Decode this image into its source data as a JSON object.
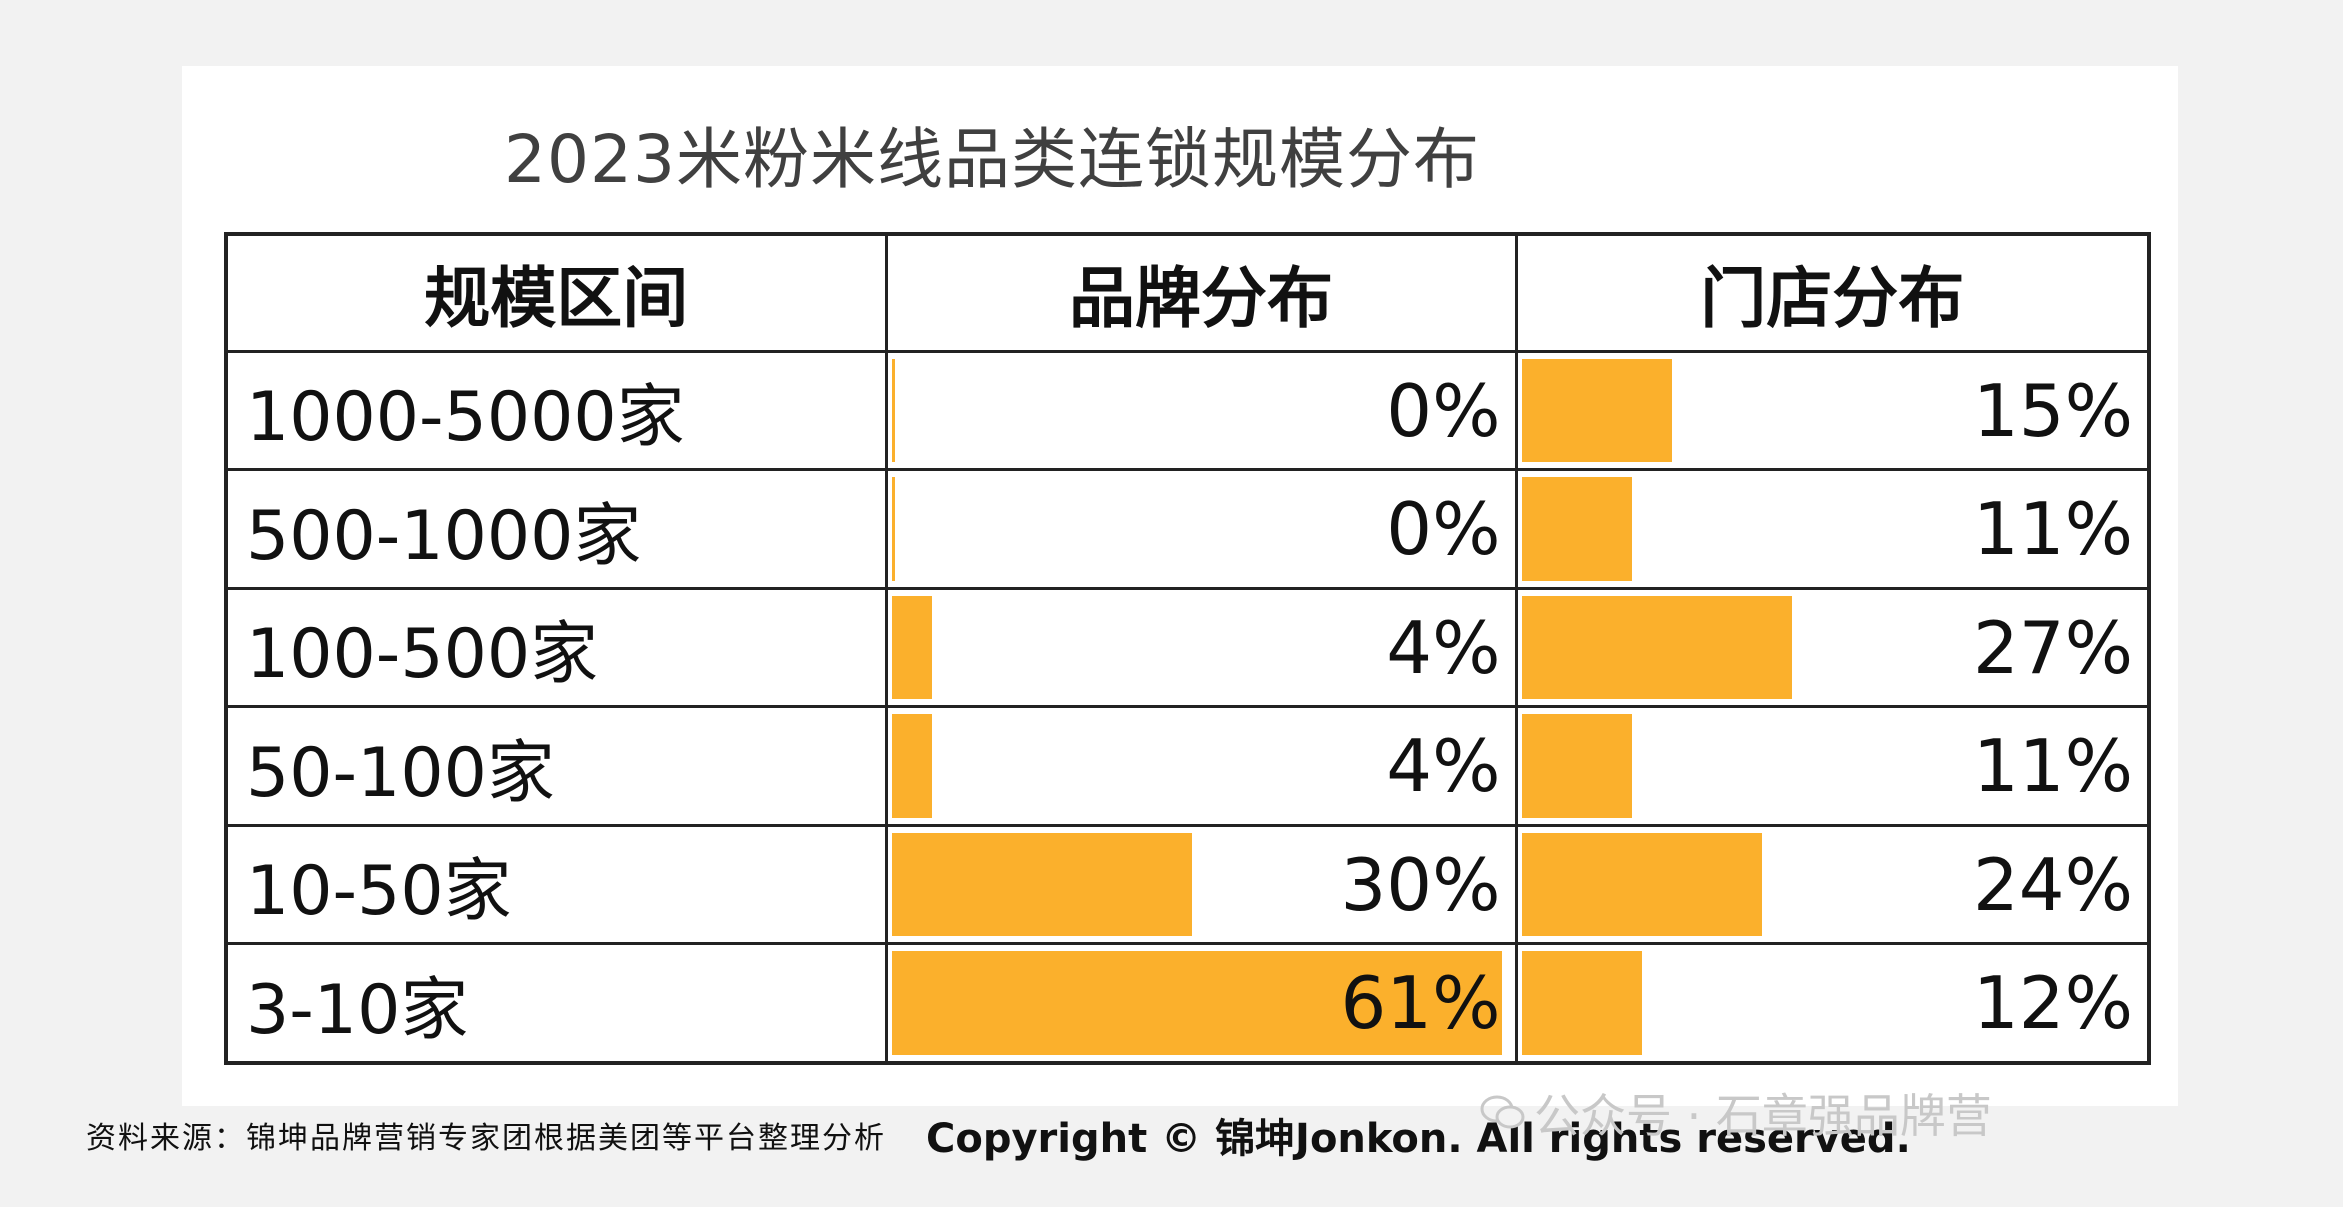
{
  "chart_data": {
    "type": "table",
    "title": "2023米粉米线品类连锁规模分布",
    "columns": [
      "规模区间",
      "品牌分布",
      "门店分布"
    ],
    "rows": [
      {
        "range": "1000-5000家",
        "brand": 0,
        "brand_label": "0%",
        "store": 15,
        "store_label": "15%"
      },
      {
        "range": "500-1000家",
        "brand": 0,
        "brand_label": "0%",
        "store": 11,
        "store_label": "11%"
      },
      {
        "range": "100-500家",
        "brand": 4,
        "brand_label": "4%",
        "store": 27,
        "store_label": "27%"
      },
      {
        "range": "50-100家",
        "brand": 4,
        "brand_label": "4%",
        "store": 11,
        "store_label": "11%"
      },
      {
        "range": "10-50家",
        "brand": 30,
        "brand_label": "30%",
        "store": 24,
        "store_label": "24%"
      },
      {
        "range": "3-10家",
        "brand": 61,
        "brand_label": "61%",
        "store": 12,
        "store_label": "12%"
      }
    ],
    "bar_color": "#fbb02c"
  },
  "footer": {
    "source": "资料来源：锦坤品牌营销专家团根据美团等平台整理分析",
    "copyright": "Copyright © 锦坤Jonkon. All rights reserved."
  },
  "watermark": {
    "text": "公众号 · 石章强品牌营",
    "icon": "wechat-icon"
  }
}
